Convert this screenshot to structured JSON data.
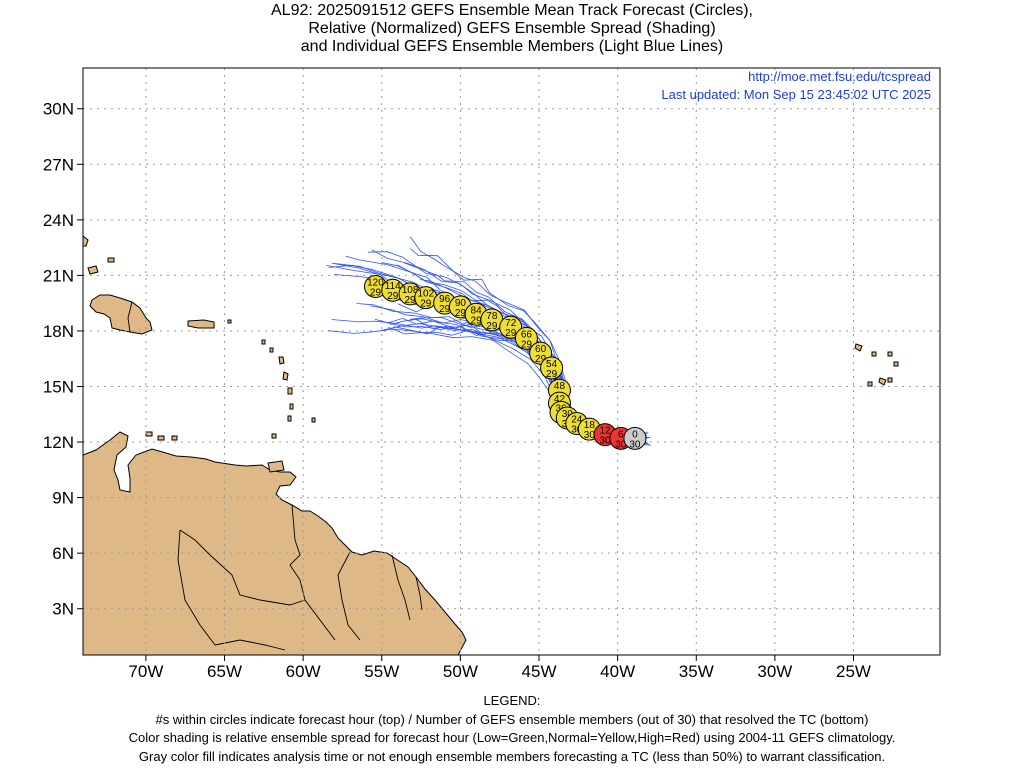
{
  "title": {
    "line1": "AL92: 2025091512 GEFS Ensemble Mean Track Forecast (Circles),",
    "line2": "Relative (Normalized) GEFS Ensemble Spread (Shading)",
    "line3": "and Individual GEFS Ensemble Members (Light Blue Lines)"
  },
  "source": {
    "url": "http://moe.met.fsu.edu/tcspread",
    "updated": "Last updated: Mon Sep 15 23:45:02 UTC 2025"
  },
  "axes": {
    "lon_labels": [
      "70W",
      "65W",
      "60W",
      "55W",
      "50W",
      "45W",
      "40W",
      "35W",
      "30W",
      "25W"
    ],
    "lon_values": [
      -70,
      -65,
      -60,
      -55,
      -50,
      -45,
      -40,
      -35,
      -30,
      -25
    ],
    "lat_labels": [
      "3N",
      "6N",
      "9N",
      "12N",
      "15N",
      "18N",
      "21N",
      "24N",
      "27N",
      "30N"
    ],
    "lat_values": [
      3,
      6,
      9,
      12,
      15,
      18,
      21,
      24,
      27,
      30
    ],
    "lon_range": [
      -74,
      -19.5
    ],
    "lat_range": [
      0.5,
      32.2
    ],
    "grid": true
  },
  "colors": {
    "land": "#deb887",
    "member_track": "#3355ee",
    "normal": "#eedd33",
    "high": "#ee3333",
    "analysis": "#cccccc"
  },
  "track": [
    {
      "hour": "0",
      "members": "30",
      "lon": -38.9,
      "lat": 12.2,
      "spread": "analysis"
    },
    {
      "hour": "6",
      "members": "30",
      "lon": -39.8,
      "lat": 12.2,
      "spread": "high"
    },
    {
      "hour": "12",
      "members": "30",
      "lon": -40.8,
      "lat": 12.4,
      "spread": "high"
    },
    {
      "hour": "18",
      "members": "30",
      "lon": -41.8,
      "lat": 12.7,
      "spread": "normal"
    },
    {
      "hour": "24",
      "members": "30",
      "lon": -42.6,
      "lat": 13.0,
      "spread": "normal"
    },
    {
      "hour": "30",
      "members": "30",
      "lon": -43.2,
      "lat": 13.3,
      "spread": "normal"
    },
    {
      "hour": "36",
      "members": "30",
      "lon": -43.6,
      "lat": 13.6,
      "spread": "normal"
    },
    {
      "hour": "42",
      "members": "30",
      "lon": -43.7,
      "lat": 14.1,
      "spread": "normal"
    },
    {
      "hour": "48",
      "members": "29",
      "lon": -43.7,
      "lat": 14.8,
      "spread": "normal"
    },
    {
      "hour": "54",
      "members": "29",
      "lon": -44.2,
      "lat": 16.0,
      "spread": "normal"
    },
    {
      "hour": "60",
      "members": "29",
      "lon": -44.9,
      "lat": 16.8,
      "spread": "normal"
    },
    {
      "hour": "66",
      "members": "29",
      "lon": -45.8,
      "lat": 17.6,
      "spread": "normal"
    },
    {
      "hour": "72",
      "members": "29",
      "lon": -46.8,
      "lat": 18.2,
      "spread": "normal"
    },
    {
      "hour": "78",
      "members": "29",
      "lon": -48.0,
      "lat": 18.6,
      "spread": "normal"
    },
    {
      "hour": "84",
      "members": "29",
      "lon": -49.0,
      "lat": 18.9,
      "spread": "normal"
    },
    {
      "hour": "90",
      "members": "29",
      "lon": -50.0,
      "lat": 19.3,
      "spread": "normal"
    },
    {
      "hour": "96",
      "members": "29",
      "lon": -51.0,
      "lat": 19.5,
      "spread": "normal"
    },
    {
      "hour": "102",
      "members": "29",
      "lon": -52.2,
      "lat": 19.8,
      "spread": "normal"
    },
    {
      "hour": "108",
      "members": "29",
      "lon": -53.2,
      "lat": 20.0,
      "spread": "normal"
    },
    {
      "hour": "114",
      "members": "29",
      "lon": -54.3,
      "lat": 20.2,
      "spread": "normal"
    },
    {
      "hour": "120",
      "members": "29",
      "lon": -55.4,
      "lat": 20.4,
      "spread": "normal"
    }
  ],
  "legend": {
    "heading": "LEGEND:",
    "line1": "#s within circles indicate forecast hour (top) / Number of GEFS ensemble members (out of 30) that resolved the TC (bottom)",
    "line2": "Color shading is relative ensemble spread for forecast hour (Low=Green,Normal=Yellow,High=Red) using 2004-11 GEFS climatology.",
    "line3": "Gray color fill indicates analysis time or not enough ensemble members forecasting a TC (less than 50%) to warrant classification."
  }
}
